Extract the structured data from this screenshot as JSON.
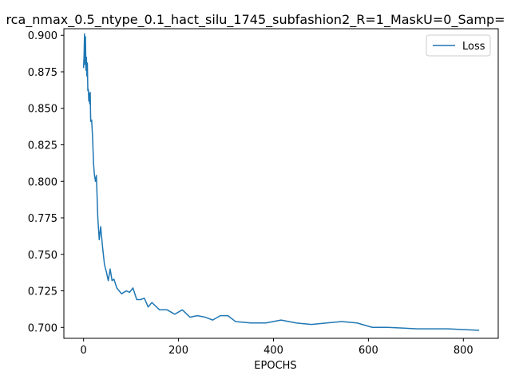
{
  "chart_data": {
    "type": "line",
    "title": "rca_nmax_0.5_ntype_0.1_hact_silu_1745_subfashion2_R=1_MaskU=0_Samp=",
    "xlabel": "EPOCHS",
    "ylabel": "",
    "xlim": [
      -41.5,
      873.5
    ],
    "ylim": [
      0.6925,
      0.9045
    ],
    "xticks": [
      0,
      200,
      400,
      600,
      800
    ],
    "xtick_labels": [
      "0",
      "200",
      "400",
      "600",
      "800"
    ],
    "yticks": [
      0.7,
      0.725,
      0.75,
      0.775,
      0.8,
      0.825,
      0.85,
      0.875,
      0.9
    ],
    "ytick_labels": [
      "0.700",
      "0.725",
      "0.750",
      "0.775",
      "0.800",
      "0.825",
      "0.850",
      "0.875",
      "0.900"
    ],
    "grid": false,
    "legend_position": "top-right",
    "colors": {
      "series": "#1f77b4",
      "axes": "#000000",
      "legend_border": "#cccccc"
    },
    "series": [
      {
        "name": "Loss",
        "x": [
          0,
          1,
          2,
          3,
          4,
          5,
          6,
          7,
          8,
          9,
          10,
          11,
          12,
          13,
          14,
          15,
          17,
          19,
          21,
          23,
          25,
          27,
          30,
          33,
          36,
          40,
          44,
          48,
          52,
          56,
          60,
          64,
          70,
          80,
          90,
          97,
          104,
          112,
          120,
          128,
          136,
          144,
          160,
          176,
          192,
          208,
          224,
          240,
          256,
          272,
          288,
          304,
          320,
          352,
          384,
          416,
          448,
          480,
          512,
          544,
          576,
          608,
          640,
          704,
          768,
          832
        ],
        "values": [
          0.878,
          0.886,
          0.901,
          0.88,
          0.899,
          0.876,
          0.885,
          0.872,
          0.881,
          0.862,
          0.863,
          0.855,
          0.86,
          0.853,
          0.861,
          0.841,
          0.842,
          0.83,
          0.812,
          0.804,
          0.8,
          0.804,
          0.775,
          0.76,
          0.769,
          0.755,
          0.743,
          0.738,
          0.732,
          0.74,
          0.732,
          0.733,
          0.727,
          0.723,
          0.725,
          0.724,
          0.727,
          0.719,
          0.719,
          0.72,
          0.714,
          0.717,
          0.712,
          0.712,
          0.709,
          0.712,
          0.707,
          0.708,
          0.707,
          0.705,
          0.708,
          0.708,
          0.704,
          0.703,
          0.703,
          0.705,
          0.703,
          0.702,
          0.703,
          0.704,
          0.703,
          0.7,
          0.7,
          0.699,
          0.699,
          0.698
        ]
      }
    ]
  }
}
